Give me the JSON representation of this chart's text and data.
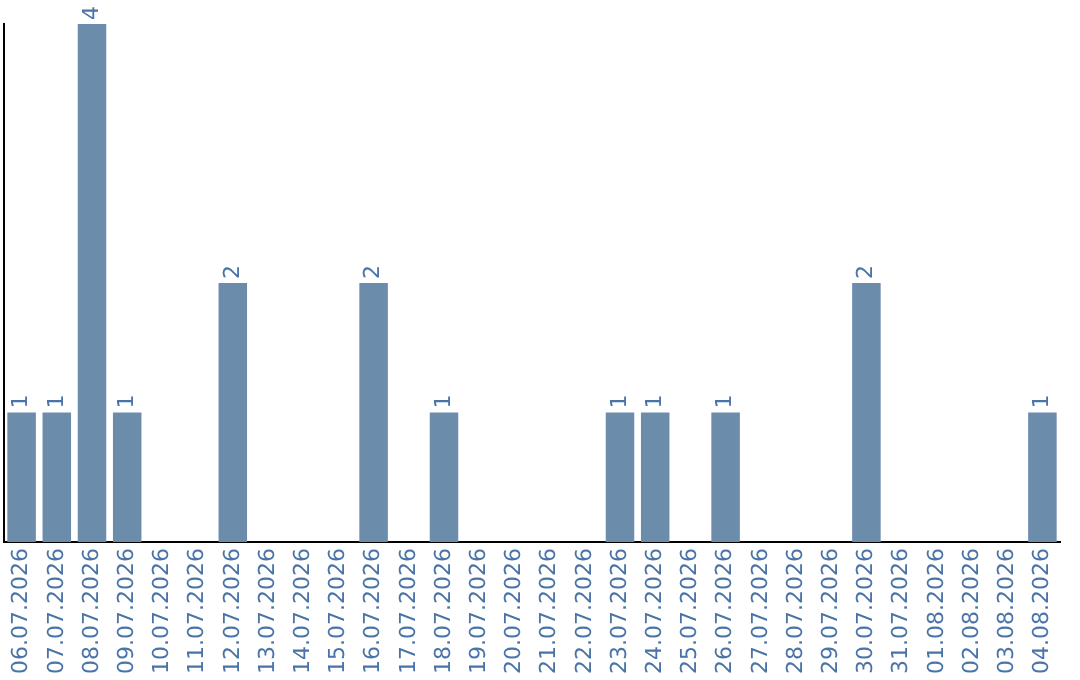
{
  "chart_data": {
    "type": "bar",
    "categories": [
      "06.07.2026",
      "07.07.2026",
      "08.07.2026",
      "09.07.2026",
      "10.07.2026",
      "11.07.2026",
      "12.07.2026",
      "13.07.2026",
      "14.07.2026",
      "15.07.2026",
      "16.07.2026",
      "17.07.2026",
      "18.07.2026",
      "19.07.2026",
      "20.07.2026",
      "21.07.2026",
      "22.07.2026",
      "23.07.2026",
      "24.07.2026",
      "25.07.2026",
      "26.07.2026",
      "27.07.2026",
      "28.07.2026",
      "29.07.2026",
      "30.07.2026",
      "31.07.2026",
      "01.08.2026",
      "02.08.2026",
      "03.08.2026",
      "04.08.2026"
    ],
    "values": [
      1,
      1,
      4,
      1,
      0,
      0,
      2,
      0,
      0,
      0,
      2,
      0,
      1,
      0,
      0,
      0,
      0,
      1,
      1,
      0,
      1,
      0,
      0,
      0,
      2,
      0,
      0,
      0,
      0,
      1
    ],
    "value_labels": [
      "1",
      "1",
      "4",
      "1",
      null,
      null,
      "2",
      null,
      null,
      null,
      "2",
      null,
      "1",
      null,
      null,
      null,
      null,
      "1",
      "1",
      null,
      "1",
      null,
      null,
      null,
      "2",
      null,
      null,
      null,
      null,
      "1"
    ],
    "color": "#6c8cab",
    "grid": false,
    "legend": false
  }
}
